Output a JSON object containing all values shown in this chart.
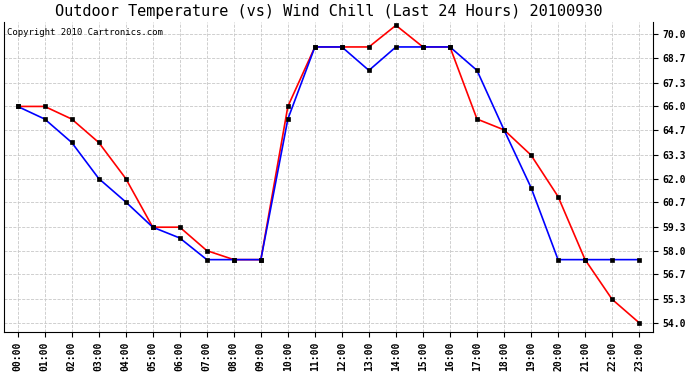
{
  "title": "Outdoor Temperature (vs) Wind Chill (Last 24 Hours) 20100930",
  "copyright": "Copyright 2010 Cartronics.com",
  "x_labels": [
    "00:00",
    "01:00",
    "02:00",
    "03:00",
    "04:00",
    "05:00",
    "06:00",
    "07:00",
    "08:00",
    "09:00",
    "10:00",
    "11:00",
    "12:00",
    "13:00",
    "14:00",
    "15:00",
    "16:00",
    "17:00",
    "18:00",
    "19:00",
    "20:00",
    "21:00",
    "22:00",
    "23:00"
  ],
  "outdoor_temp": [
    66.0,
    66.0,
    65.3,
    64.0,
    62.0,
    59.3,
    59.3,
    58.0,
    57.5,
    57.5,
    66.0,
    69.3,
    69.3,
    69.3,
    70.5,
    69.3,
    69.3,
    65.3,
    64.7,
    63.3,
    61.0,
    57.5,
    55.3,
    54.0
  ],
  "wind_chill": [
    66.0,
    65.3,
    64.0,
    62.0,
    60.7,
    59.3,
    58.7,
    57.5,
    57.5,
    57.5,
    65.3,
    69.3,
    69.3,
    68.0,
    69.3,
    69.3,
    69.3,
    68.0,
    64.7,
    61.5,
    57.5,
    57.5,
    57.5,
    57.5
  ],
  "ylim": [
    53.5,
    70.7
  ],
  "yticks": [
    54.0,
    55.3,
    56.7,
    58.0,
    59.3,
    60.7,
    62.0,
    63.3,
    64.7,
    66.0,
    67.3,
    68.7,
    70.0
  ],
  "temp_color": "#ff0000",
  "chill_color": "#0000ff",
  "bg_color": "#ffffff",
  "grid_color": "#c8c8c8",
  "marker_color": "#000000",
  "marker_size": 3,
  "line_width": 1.2,
  "title_fontsize": 11,
  "tick_fontsize": 7,
  "fig_width": 6.9,
  "fig_height": 3.75,
  "dpi": 100
}
